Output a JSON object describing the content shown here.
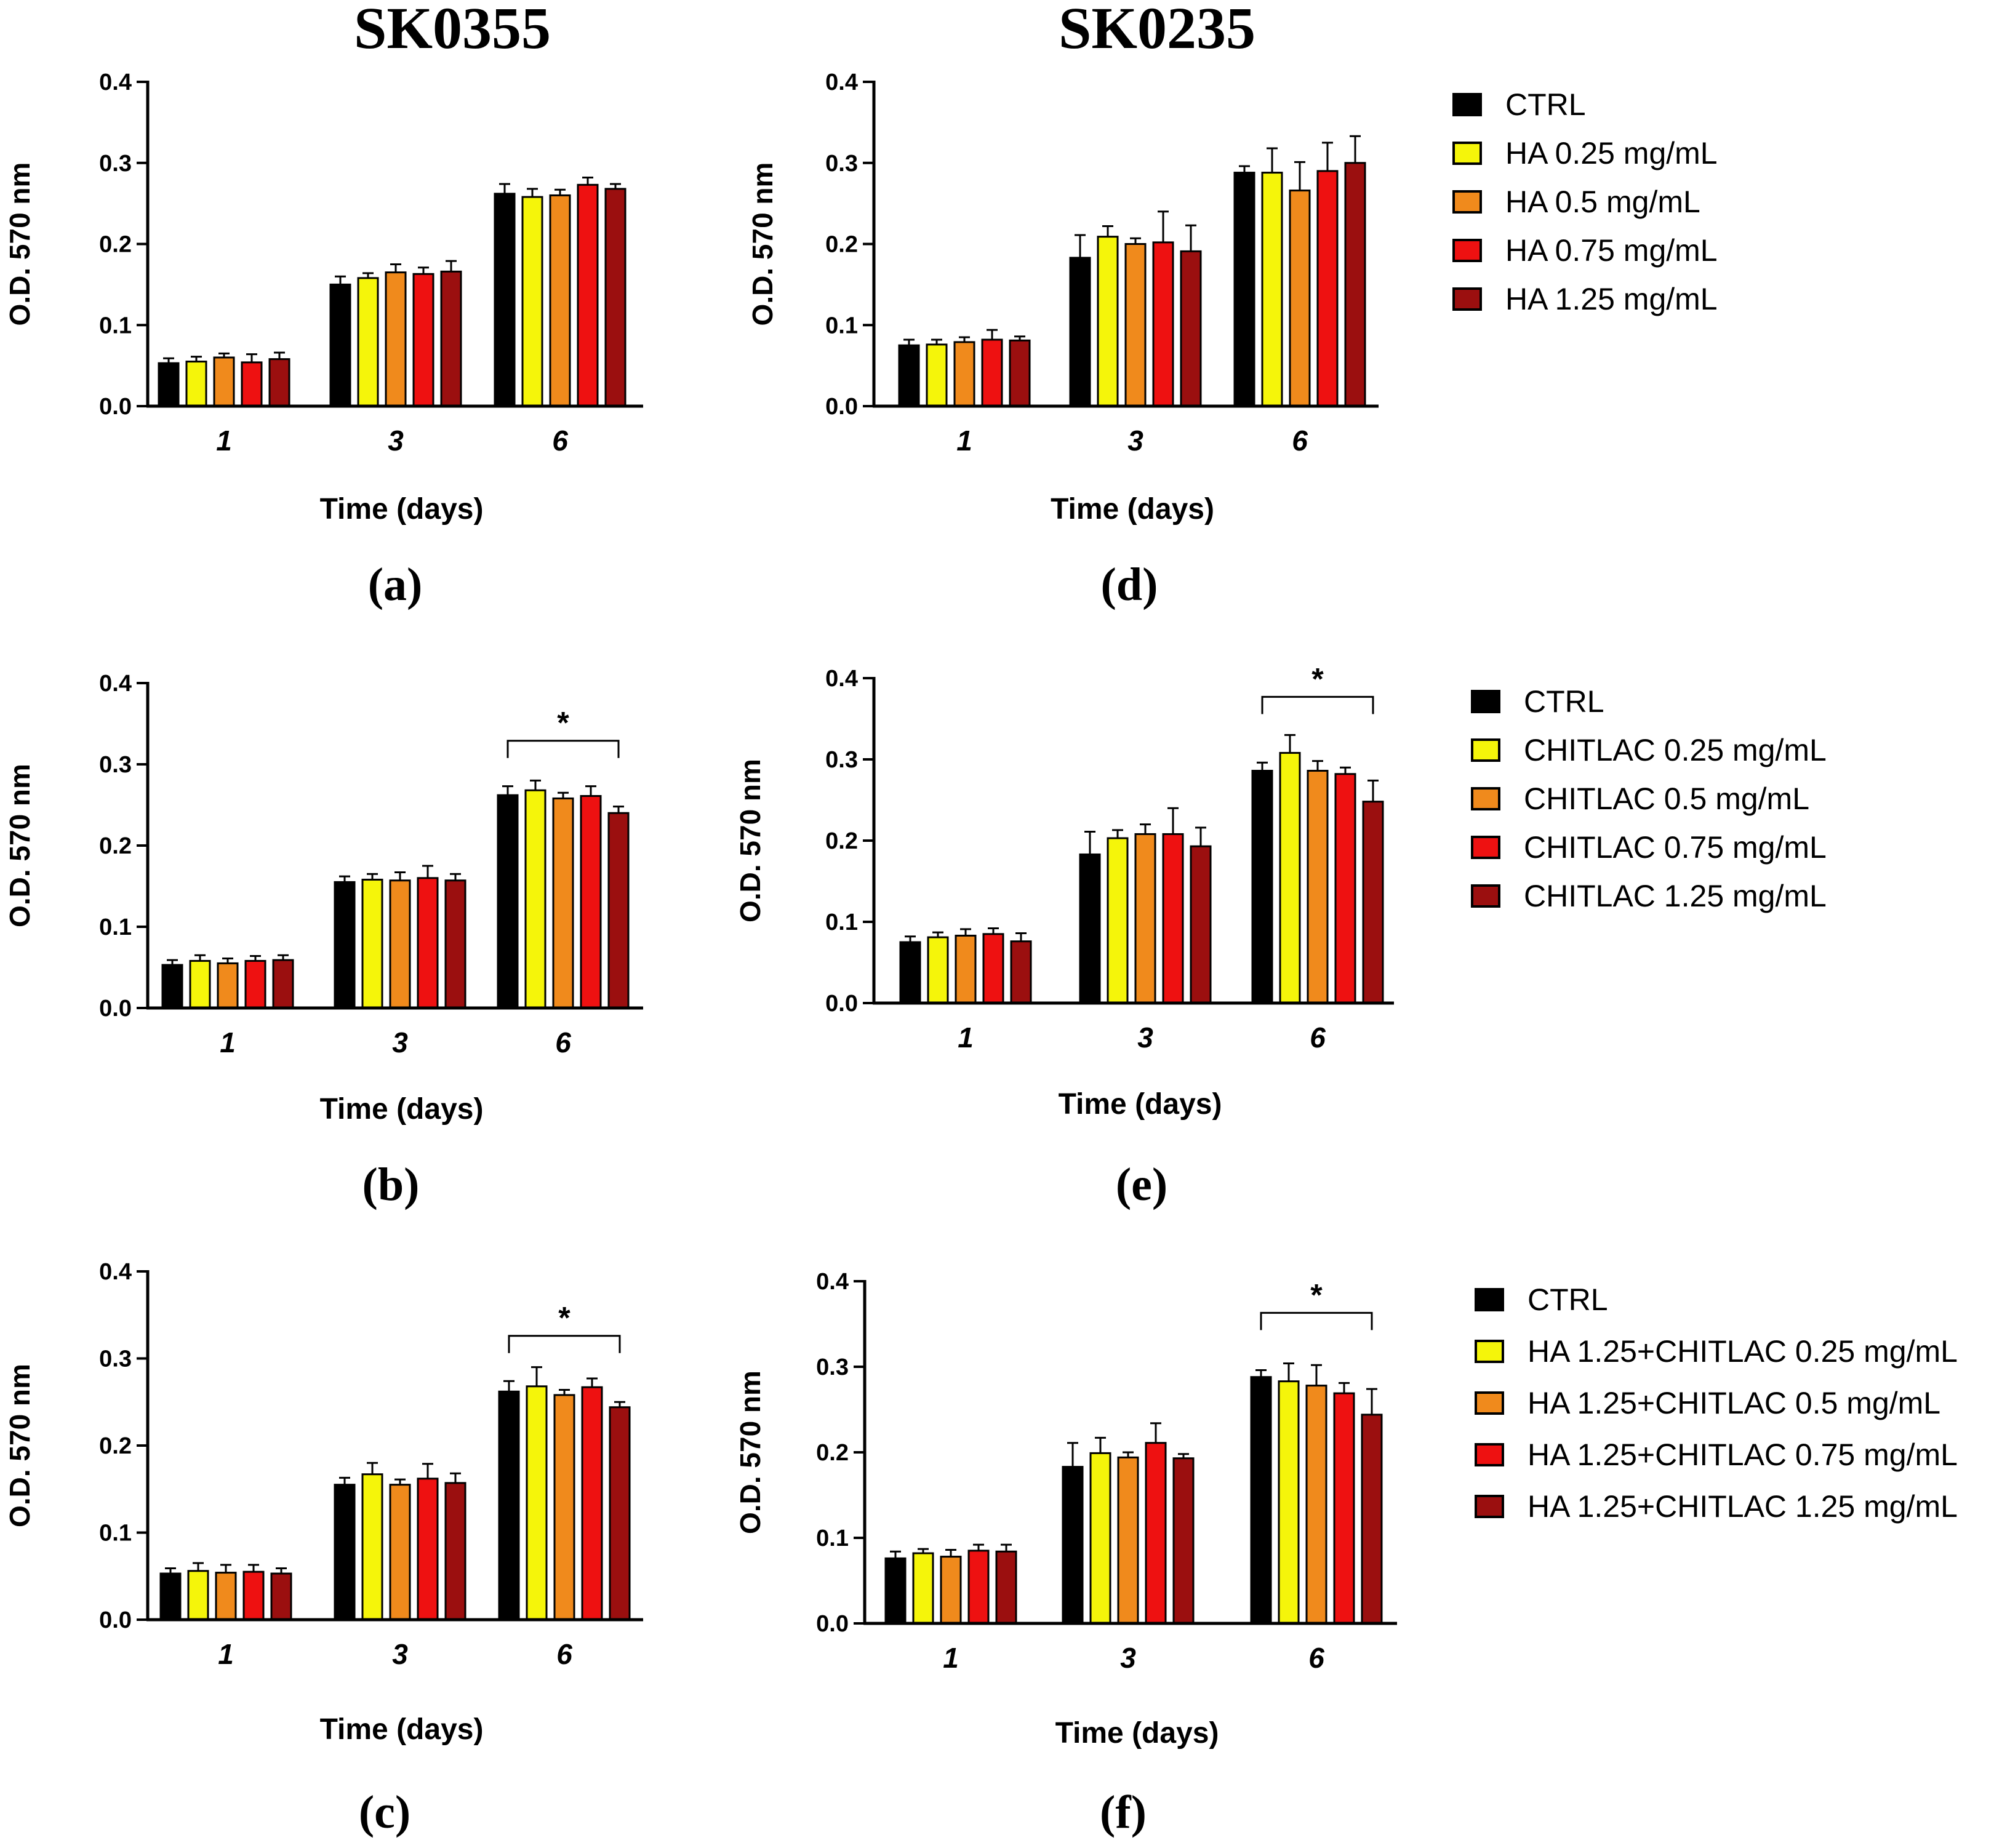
{
  "column_titles": [
    "SK0355",
    "SK0235"
  ],
  "colors": {
    "CTRL": "#000000",
    "c025": "#f5f50a",
    "c05": "#f08a1c",
    "c075": "#ee1111",
    "c125": "#9b0f0f"
  },
  "legends": [
    {
      "entries": [
        "CTRL",
        "HA 0.25 mg/mL",
        "HA 0.5 mg/mL",
        "HA 0.75 mg/mL",
        "HA 1.25 mg/mL"
      ]
    },
    {
      "entries": [
        "CTRL",
        "CHITLAC 0.25 mg/mL",
        "CHITLAC 0.5 mg/mL",
        "CHITLAC 0.75 mg/mL",
        "CHITLAC 1.25 mg/mL"
      ]
    },
    {
      "entries": [
        "CTRL",
        "HA 1.25+CHITLAC 0.25 mg/mL",
        "HA 1.25+CHITLAC 0.5 mg/mL",
        "HA 1.25+CHITLAC 0.75 mg/mL",
        "HA 1.25+CHITLAC 1.25 mg/mL"
      ]
    }
  ],
  "chart_data": [
    {
      "id": "a",
      "panel_label": "(a)",
      "type": "bar",
      "categories": [
        "1",
        "3",
        "6"
      ],
      "xlabel": "Time (days)",
      "ylabel": "O.D. 570 nm",
      "ylim": [
        0,
        0.4
      ],
      "yticks": [
        "0.0",
        "0.1",
        "0.2",
        "0.3",
        "0.4"
      ],
      "series": [
        {
          "name": "CTRL",
          "values": [
            0.053,
            0.15,
            0.262
          ],
          "errors": [
            0.006,
            0.01,
            0.012
          ]
        },
        {
          "name": "HA 0.25 mg/mL",
          "values": [
            0.055,
            0.158,
            0.258
          ],
          "errors": [
            0.006,
            0.006,
            0.01
          ]
        },
        {
          "name": "HA 0.5 mg/mL",
          "values": [
            0.06,
            0.165,
            0.26
          ],
          "errors": [
            0.005,
            0.01,
            0.007
          ]
        },
        {
          "name": "HA 0.75 mg/mL",
          "values": [
            0.054,
            0.163,
            0.273
          ],
          "errors": [
            0.01,
            0.008,
            0.009
          ]
        },
        {
          "name": "HA 1.25 mg/mL",
          "values": [
            0.058,
            0.166,
            0.268
          ],
          "errors": [
            0.008,
            0.013,
            0.006
          ]
        }
      ],
      "significance": null
    },
    {
      "id": "b",
      "panel_label": "(b)",
      "type": "bar",
      "categories": [
        "1",
        "3",
        "6"
      ],
      "xlabel": "Time (days)",
      "ylabel": "O.D. 570 nm",
      "ylim": [
        0,
        0.4
      ],
      "yticks": [
        "0.0",
        "0.1",
        "0.2",
        "0.3",
        "0.4"
      ],
      "series": [
        {
          "name": "CTRL",
          "values": [
            0.053,
            0.155,
            0.262
          ],
          "errors": [
            0.006,
            0.007,
            0.011
          ]
        },
        {
          "name": "CHITLAC 0.25 mg/mL",
          "values": [
            0.058,
            0.158,
            0.268
          ],
          "errors": [
            0.007,
            0.007,
            0.012
          ]
        },
        {
          "name": "CHITLAC 0.5 mg/mL",
          "values": [
            0.055,
            0.157,
            0.258
          ],
          "errors": [
            0.006,
            0.01,
            0.007
          ]
        },
        {
          "name": "CHITLAC 0.75 mg/mL",
          "values": [
            0.058,
            0.16,
            0.261
          ],
          "errors": [
            0.006,
            0.015,
            0.012
          ]
        },
        {
          "name": "CHITLAC 1.25 mg/mL",
          "values": [
            0.059,
            0.157,
            0.24
          ],
          "errors": [
            0.006,
            0.008,
            0.008
          ]
        }
      ],
      "significance": {
        "category": "6",
        "from": 0,
        "to": 4,
        "y": 0.329,
        "label": "*"
      }
    },
    {
      "id": "c",
      "panel_label": "(c)",
      "type": "bar",
      "categories": [
        "1",
        "3",
        "6"
      ],
      "xlabel": "Time (days)",
      "ylabel": "O.D. 570 nm",
      "ylim": [
        0,
        0.4
      ],
      "yticks": [
        "0.0",
        "0.1",
        "0.2",
        "0.3",
        "0.4"
      ],
      "series": [
        {
          "name": "CTRL",
          "values": [
            0.053,
            0.155,
            0.262
          ],
          "errors": [
            0.006,
            0.008,
            0.012
          ]
        },
        {
          "name": "HA 1.25+CHITLAC 0.25 mg/mL",
          "values": [
            0.056,
            0.167,
            0.268
          ],
          "errors": [
            0.009,
            0.013,
            0.022
          ]
        },
        {
          "name": "HA 1.25+CHITLAC 0.5 mg/mL",
          "values": [
            0.054,
            0.155,
            0.258
          ],
          "errors": [
            0.009,
            0.006,
            0.006
          ]
        },
        {
          "name": "HA 1.25+CHITLAC 0.75 mg/mL",
          "values": [
            0.055,
            0.162,
            0.267
          ],
          "errors": [
            0.008,
            0.017,
            0.01
          ]
        },
        {
          "name": "HA 1.25+CHITLAC 1.25 mg/mL",
          "values": [
            0.053,
            0.157,
            0.244
          ],
          "errors": [
            0.006,
            0.011,
            0.006
          ]
        }
      ],
      "significance": {
        "category": "6",
        "from": 0,
        "to": 4,
        "y": 0.326,
        "label": "*"
      }
    },
    {
      "id": "d",
      "panel_label": "(d)",
      "type": "bar",
      "categories": [
        "1",
        "3",
        "6"
      ],
      "xlabel": "Time (days)",
      "ylabel": "O.D. 570 nm",
      "ylim": [
        0,
        0.4
      ],
      "yticks": [
        "0.0",
        "0.1",
        "0.2",
        "0.3",
        "0.4"
      ],
      "series": [
        {
          "name": "CTRL",
          "values": [
            0.075,
            0.183,
            0.288
          ],
          "errors": [
            0.007,
            0.028,
            0.008
          ]
        },
        {
          "name": "HA 0.25 mg/mL",
          "values": [
            0.076,
            0.209,
            0.288
          ],
          "errors": [
            0.006,
            0.013,
            0.03
          ]
        },
        {
          "name": "HA 0.5 mg/mL",
          "values": [
            0.079,
            0.2,
            0.266
          ],
          "errors": [
            0.006,
            0.007,
            0.035
          ]
        },
        {
          "name": "HA 0.75 mg/mL",
          "values": [
            0.082,
            0.202,
            0.29
          ],
          "errors": [
            0.012,
            0.038,
            0.035
          ]
        },
        {
          "name": "HA 1.25 mg/mL",
          "values": [
            0.081,
            0.191,
            0.3
          ],
          "errors": [
            0.005,
            0.032,
            0.033
          ]
        }
      ],
      "significance": null
    },
    {
      "id": "e",
      "panel_label": "(e)",
      "type": "bar",
      "categories": [
        "1",
        "3",
        "6"
      ],
      "xlabel": "Time (days)",
      "ylabel": "O.D. 570 nm",
      "ylim": [
        0,
        0.4
      ],
      "yticks": [
        "0.0",
        "0.1",
        "0.2",
        "0.3",
        "0.4"
      ],
      "series": [
        {
          "name": "CTRL",
          "values": [
            0.075,
            0.183,
            0.286
          ],
          "errors": [
            0.007,
            0.028,
            0.01
          ]
        },
        {
          "name": "CHITLAC 0.25 mg/mL",
          "values": [
            0.081,
            0.203,
            0.308
          ],
          "errors": [
            0.006,
            0.01,
            0.022
          ]
        },
        {
          "name": "CHITLAC 0.5 mg/mL",
          "values": [
            0.083,
            0.208,
            0.286
          ],
          "errors": [
            0.008,
            0.012,
            0.012
          ]
        },
        {
          "name": "CHITLAC 0.75 mg/mL",
          "values": [
            0.085,
            0.208,
            0.282
          ],
          "errors": [
            0.007,
            0.032,
            0.008
          ]
        },
        {
          "name": "CHITLAC 1.25 mg/mL",
          "values": [
            0.076,
            0.193,
            0.248
          ],
          "errors": [
            0.01,
            0.023,
            0.026
          ]
        }
      ],
      "significance": {
        "category": "6",
        "from": 0,
        "to": 4,
        "y": 0.377,
        "label": "*"
      }
    },
    {
      "id": "f",
      "panel_label": "(f)",
      "type": "bar",
      "categories": [
        "1",
        "3",
        "6"
      ],
      "xlabel": "Time (days)",
      "ylabel": "O.D. 570 nm",
      "ylim": [
        0,
        0.4
      ],
      "yticks": [
        "0.0",
        "0.1",
        "0.2",
        "0.3",
        "0.4"
      ],
      "series": [
        {
          "name": "CTRL",
          "values": [
            0.076,
            0.183,
            0.288
          ],
          "errors": [
            0.008,
            0.028,
            0.008
          ]
        },
        {
          "name": "HA 1.25+CHITLAC 0.25 mg/mL",
          "values": [
            0.082,
            0.199,
            0.283
          ],
          "errors": [
            0.005,
            0.018,
            0.021
          ]
        },
        {
          "name": "HA 1.25+CHITLAC 0.5 mg/mL",
          "values": [
            0.078,
            0.194,
            0.278
          ],
          "errors": [
            0.008,
            0.006,
            0.024
          ]
        },
        {
          "name": "HA 1.25+CHITLAC 0.75 mg/mL",
          "values": [
            0.085,
            0.211,
            0.269
          ],
          "errors": [
            0.007,
            0.023,
            0.012
          ]
        },
        {
          "name": "HA 1.25+CHITLAC 1.25 mg/mL",
          "values": [
            0.084,
            0.193,
            0.244
          ],
          "errors": [
            0.008,
            0.005,
            0.03
          ]
        }
      ],
      "significance": {
        "category": "6",
        "from": 0,
        "to": 4,
        "y": 0.363,
        "label": "*"
      }
    }
  ]
}
